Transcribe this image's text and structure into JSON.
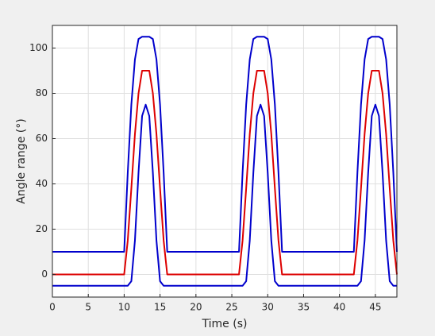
{
  "chart_data": {
    "type": "line",
    "x_label": "Time (s)",
    "y_label": "Angle range (°)",
    "x": [
      0,
      10,
      10.5,
      11,
      11.5,
      12,
      12.5,
      13,
      13.5,
      14,
      14.5,
      15,
      15.5,
      16,
      26,
      26.5,
      27,
      27.5,
      28,
      28.5,
      29,
      29.5,
      30,
      30.5,
      31,
      31.5,
      32,
      42,
      42.5,
      43,
      43.5,
      44,
      44.5,
      45,
      45.5,
      46,
      46.5,
      47,
      47.5,
      48
    ],
    "series": [
      {
        "color": "#0000cc",
        "values": [
          10,
          10,
          45,
          75,
          95,
          104,
          105,
          105,
          105,
          104,
          95,
          75,
          45,
          10,
          10,
          45,
          75,
          95,
          104,
          105,
          105,
          105,
          104,
          95,
          75,
          45,
          10,
          10,
          45,
          75,
          95,
          104,
          105,
          105,
          105,
          104,
          95,
          75,
          45,
          10
        ]
      },
      {
        "color": "#dd0000",
        "values": [
          0,
          0,
          15,
          38,
          62,
          80,
          90,
          90,
          90,
          80,
          62,
          38,
          15,
          0,
          0,
          15,
          38,
          62,
          80,
          90,
          90,
          90,
          80,
          62,
          38,
          15,
          0,
          0,
          15,
          38,
          62,
          80,
          90,
          90,
          90,
          80,
          62,
          38,
          15,
          0
        ]
      },
      {
        "color": "#0000cc",
        "values": [
          -5,
          -5,
          -5,
          -3,
          15,
          45,
          70,
          75,
          70,
          45,
          15,
          -3,
          -5,
          -5,
          -5,
          -5,
          -3,
          15,
          45,
          70,
          75,
          70,
          45,
          15,
          -3,
          -5,
          -5,
          -5,
          -5,
          -3,
          15,
          45,
          70,
          75,
          70,
          45,
          15,
          -3,
          -5,
          -5
        ]
      }
    ],
    "xlim": [
      0,
      48
    ],
    "xticks": [
      0,
      5,
      10,
      15,
      20,
      25,
      30,
      35,
      40,
      45
    ],
    "ylim": [
      -10,
      110
    ],
    "yticks": [
      0,
      20,
      40,
      60,
      80,
      100
    ],
    "grid": true
  }
}
